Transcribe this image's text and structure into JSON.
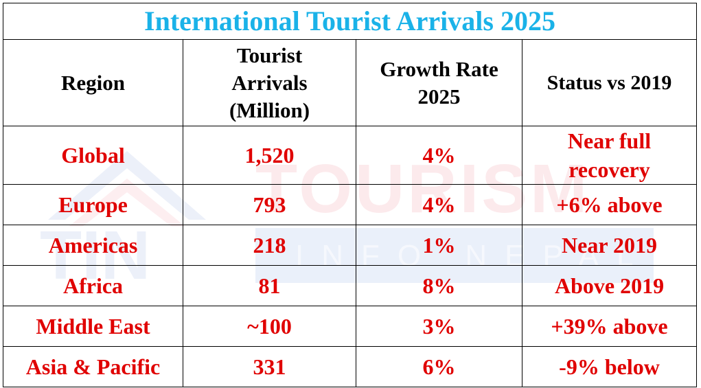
{
  "title": "International Tourist Arrivals 2025",
  "watermark": {
    "word": "TOURISM",
    "sub": "INFO NEPAL",
    "logo": "TIN"
  },
  "columns": [
    {
      "lines": [
        "Tourist",
        "Arrivals",
        "(Million)"
      ]
    }
  ],
  "headers": {
    "region": "Region",
    "arrivals_1": "Tourist",
    "arrivals_2": "Arrivals",
    "arrivals_3": "(Million)",
    "growth_1": "Growth Rate",
    "growth_2": "2025",
    "status": "Status vs 2019"
  },
  "rows": [
    {
      "region": "Global",
      "arrivals": "1,520",
      "growth": "4%",
      "status_1": "Near full",
      "status_2": "recovery"
    },
    {
      "region": "Europe",
      "arrivals": "793",
      "growth": "4%",
      "status_1": "+6% above",
      "status_2": ""
    },
    {
      "region": "Americas",
      "arrivals": "218",
      "growth": "1%",
      "status_1": "Near 2019",
      "status_2": ""
    },
    {
      "region": "Africa",
      "arrivals": "81",
      "growth": "8%",
      "status_1": "Above 2019",
      "status_2": ""
    },
    {
      "region": "Middle East",
      "arrivals": "~100",
      "growth": "3%",
      "status_1": "+39% above",
      "status_2": ""
    },
    {
      "region": "Asia & Pacific",
      "arrivals": "331",
      "growth": "6%",
      "status_1": "-9% below",
      "status_2": ""
    }
  ],
  "colors": {
    "title": "#1ab2e8",
    "data": "#e00000",
    "header": "#000000"
  }
}
